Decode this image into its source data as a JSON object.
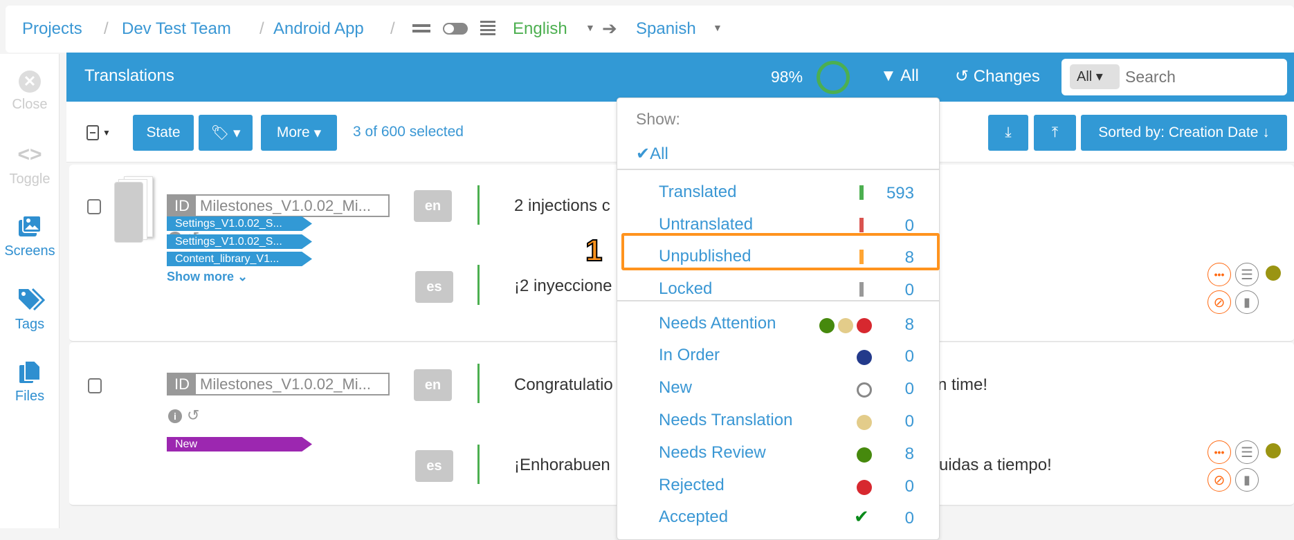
{
  "breadcrumb": {
    "items": [
      "Projects",
      "Dev Test Team",
      "Android App"
    ],
    "separator": "/",
    "source_lang": "English",
    "target_lang": "Spanish"
  },
  "sidebar": {
    "items": [
      {
        "label": "Close",
        "icon": "close-circle-icon"
      },
      {
        "label": "Toggle",
        "icon": "code-brackets-icon"
      },
      {
        "label": "Screens",
        "icon": "images-icon"
      },
      {
        "label": "Tags",
        "icon": "tags-icon"
      },
      {
        "label": "Files",
        "icon": "files-icon"
      }
    ]
  },
  "header": {
    "title": "Translations",
    "progress_label": "98%",
    "progress": 0.98,
    "filter_label": "All",
    "changes_label": "Changes",
    "search_scope": "All",
    "search_placeholder": "Search"
  },
  "toolbar": {
    "state_label": "State",
    "more_label": "More",
    "selection": "3 of 600 selected",
    "sort_label": "Sorted by: Creation Date ↓"
  },
  "filter_menu": {
    "heading": "Show:",
    "all_label": "All",
    "status_items": [
      {
        "label": "Translated",
        "count": "593",
        "color": "#4caf50"
      },
      {
        "label": "Untranslated",
        "count": "0",
        "color": "#d9534f"
      },
      {
        "label": "Unpublished",
        "count": "8",
        "color": "#ffa534"
      },
      {
        "label": "Locked",
        "count": "0",
        "color": "#999999"
      }
    ],
    "workflow_items": [
      {
        "label": "Needs Attention",
        "count": "8"
      },
      {
        "label": "In Order",
        "count": "0"
      },
      {
        "label": "New",
        "count": "0"
      },
      {
        "label": "Needs Translation",
        "count": "0"
      },
      {
        "label": "Needs Review",
        "count": "8"
      },
      {
        "label": "Rejected",
        "count": "0"
      },
      {
        "label": "Accepted",
        "count": "0"
      }
    ],
    "annotation": "1"
  },
  "rows": [
    {
      "id_label": "ID",
      "id_value": "Milestones_V1.0.02_Mi...",
      "source_code": "en",
      "target_code": "es",
      "source_text": "2 injections c",
      "target_text": "¡2 inyeccione",
      "tags": [
        "Settings_V1.0.02_S...",
        "Settings_V1.0.02_S...",
        "Content_library_V1..."
      ],
      "show_more": "Show more"
    },
    {
      "id_label": "ID",
      "id_value": "Milestones_V1.0.02_Mi...",
      "source_code": "en",
      "target_code": "es",
      "source_text": "Congratulatio",
      "source_text_end": "n time!",
      "target_text": "¡Enhorabuen",
      "target_text_end": "uidas a tiempo!",
      "tags": [
        "New"
      ]
    }
  ],
  "colors": {
    "accent": "#3299d5",
    "tag_blue": "#3299d5",
    "tag_new": "#9c27b0",
    "status_olive": "#9a9412",
    "orange": "#ff6a13",
    "highlight": "#ff931e"
  }
}
